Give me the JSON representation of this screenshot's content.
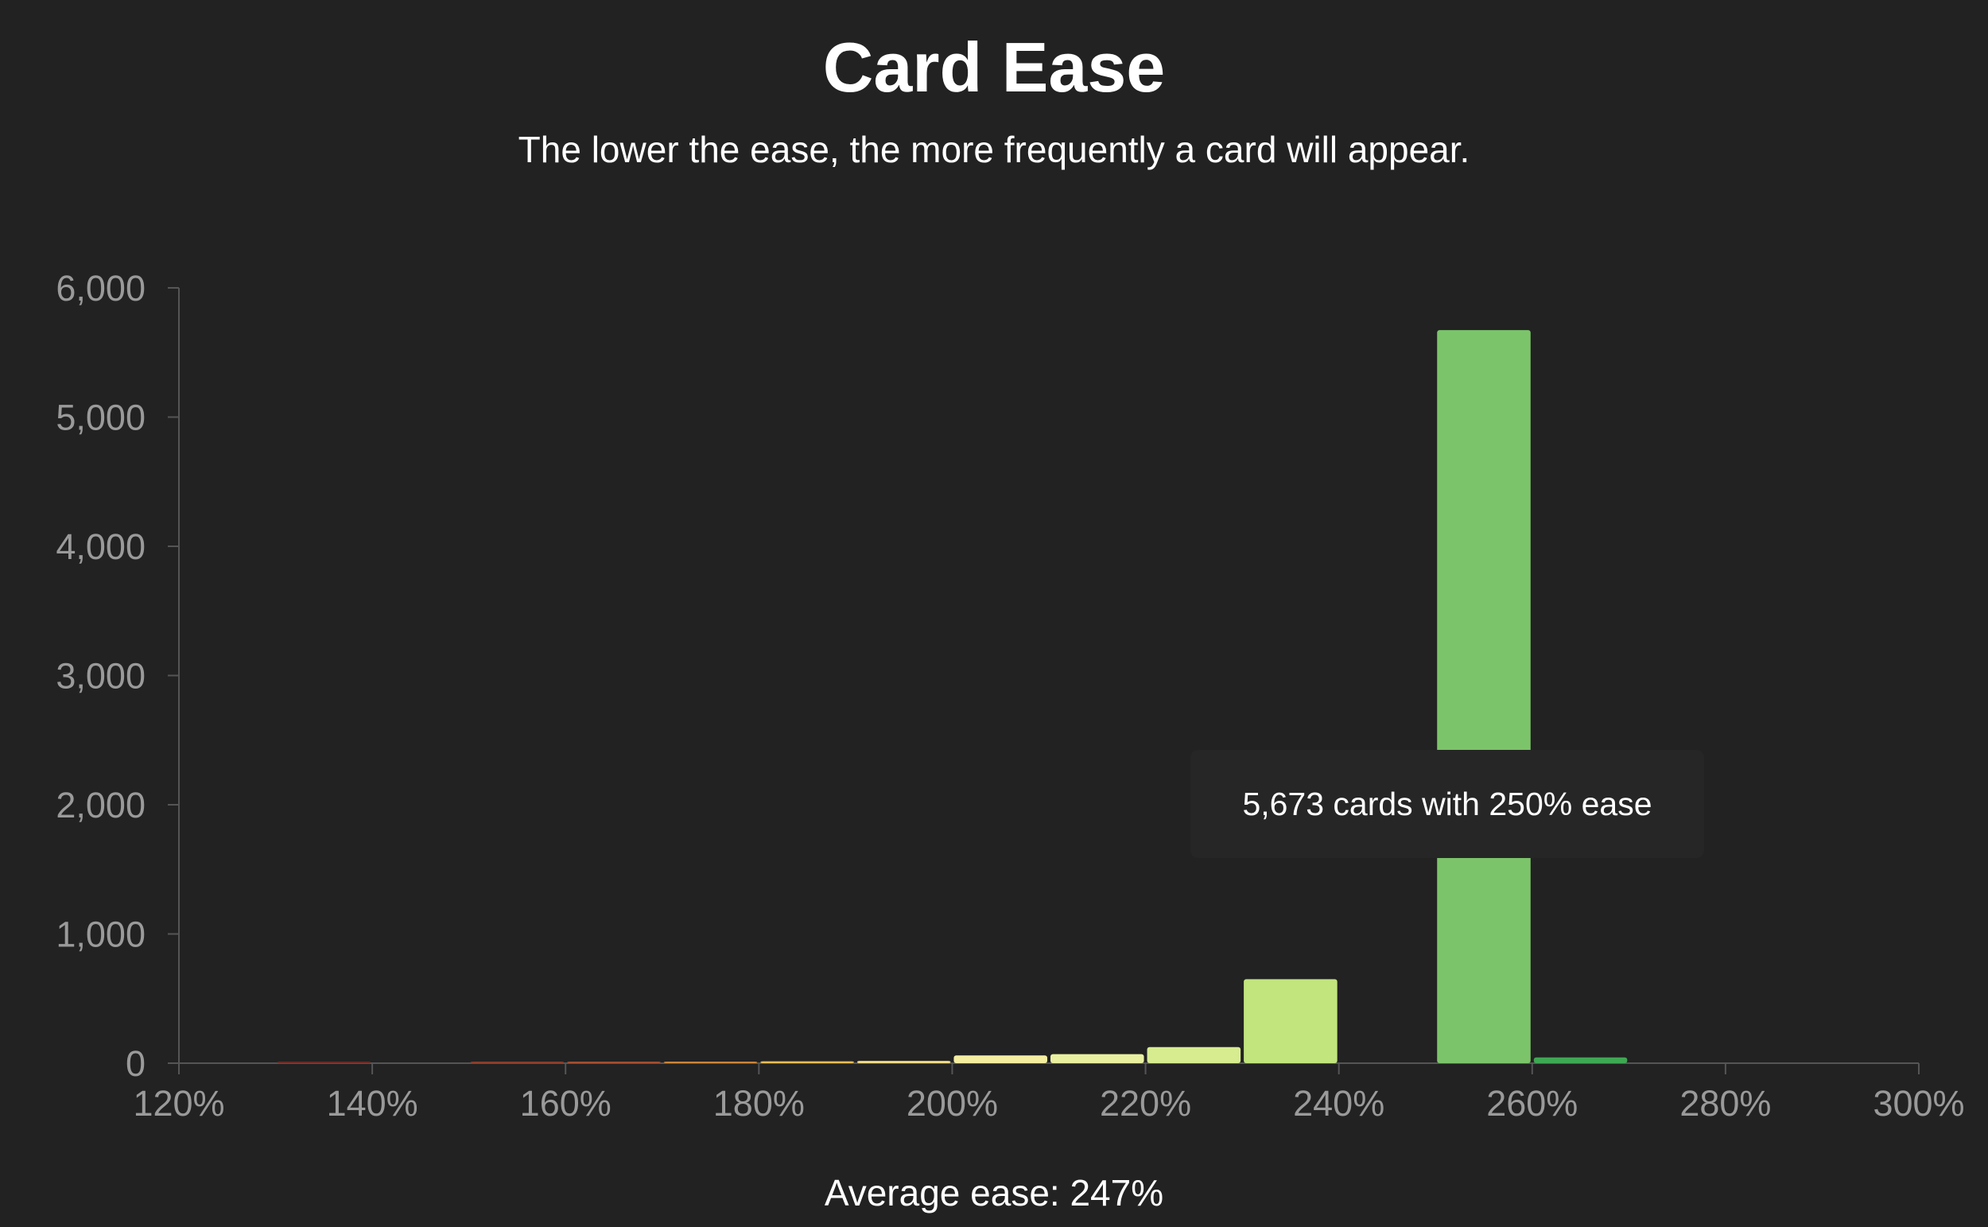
{
  "page": {
    "title": "Card Ease",
    "subtitle": "The lower the ease, the more frequently a card will appear.",
    "tooltip": "5,673 cards with 250% ease",
    "footer": "Average ease: 247%"
  },
  "colors": {
    "background": "#222222",
    "axis": "#555555",
    "tick_text": "#9a9a9a",
    "tooltip_bg": "#262626"
  },
  "chart_data": {
    "type": "bar",
    "title": "Card Ease",
    "subtitle": "The lower the ease, the more frequently a card will appear.",
    "xlim": [
      120,
      300
    ],
    "ylim": [
      0,
      6000
    ],
    "x_ticks": [
      "120%",
      "140%",
      "160%",
      "180%",
      "200%",
      "220%",
      "240%",
      "260%",
      "280%",
      "300%"
    ],
    "y_ticks": [
      "0",
      "1,000",
      "2,000",
      "3,000",
      "4,000",
      "5,000",
      "6,000"
    ],
    "grid": false,
    "legend": "none",
    "bins": [
      {
        "start": 130,
        "end": 140,
        "value": 3,
        "color": "#6b2b24"
      },
      {
        "start": 150,
        "end": 160,
        "value": 5,
        "color": "#8a3d2b"
      },
      {
        "start": 160,
        "end": 170,
        "value": 6,
        "color": "#a34e30"
      },
      {
        "start": 170,
        "end": 180,
        "value": 12,
        "color": "#c9853a"
      },
      {
        "start": 180,
        "end": 190,
        "value": 15,
        "color": "#e7bf58"
      },
      {
        "start": 190,
        "end": 200,
        "value": 18,
        "color": "#f2dc86"
      },
      {
        "start": 200,
        "end": 210,
        "value": 60,
        "color": "#f5eea0"
      },
      {
        "start": 210,
        "end": 220,
        "value": 70,
        "color": "#e9f0a0"
      },
      {
        "start": 220,
        "end": 230,
        "value": 125,
        "color": "#d7ec8f"
      },
      {
        "start": 230,
        "end": 240,
        "value": 650,
        "color": "#c2e57e"
      },
      {
        "start": 250,
        "end": 260,
        "value": 5673,
        "color": "#7cc46a"
      },
      {
        "start": 260,
        "end": 270,
        "value": 45,
        "color": "#3ea853"
      }
    ],
    "annotation": "5,673 cards with 250% ease",
    "footer": "Average ease: 247%"
  }
}
